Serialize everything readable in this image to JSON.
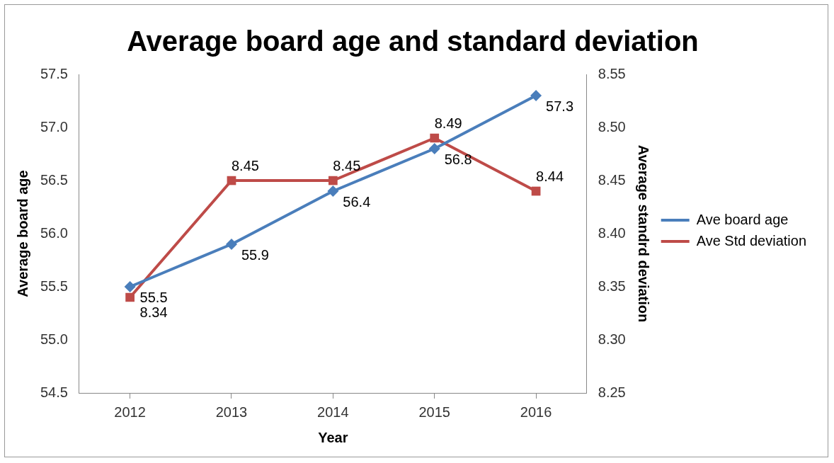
{
  "chart_data": {
    "type": "line",
    "title": "Average board age and standard deviation",
    "xlabel": "Year",
    "ylabel": "Average board age",
    "y2label": "Average standrd deviation",
    "categories": [
      "2012",
      "2013",
      "2014",
      "2015",
      "2016"
    ],
    "series": [
      {
        "name": "Ave board age",
        "color": "#4a7ebb",
        "marker": "diamond",
        "values": [
          55.5,
          55.9,
          56.4,
          56.8,
          57.3
        ]
      },
      {
        "name": "Ave Std deviation",
        "color": "#be4b48",
        "marker": "square",
        "axis": "y2",
        "values": [
          8.34,
          8.45,
          8.45,
          8.49,
          8.44
        ]
      }
    ],
    "ylim": [
      54.5,
      57.5
    ],
    "yticks": [
      54.5,
      {
        "value": 55,
        "label": "55.0"
      },
      55.5,
      {
        "value": 56,
        "label": "56.0"
      },
      56.5,
      {
        "value": 57,
        "label": "57.0"
      },
      57.5
    ],
    "y2lim": [
      8.25,
      8.55
    ],
    "y2ticks": [
      8.25,
      {
        "value": 8.3,
        "label": "8.30"
      },
      8.35,
      {
        "value": 8.4,
        "label": "8.40"
      },
      8.45,
      {
        "value": 8.5,
        "label": "8.50"
      },
      8.55
    ],
    "legend": "right",
    "data_labels": true
  }
}
